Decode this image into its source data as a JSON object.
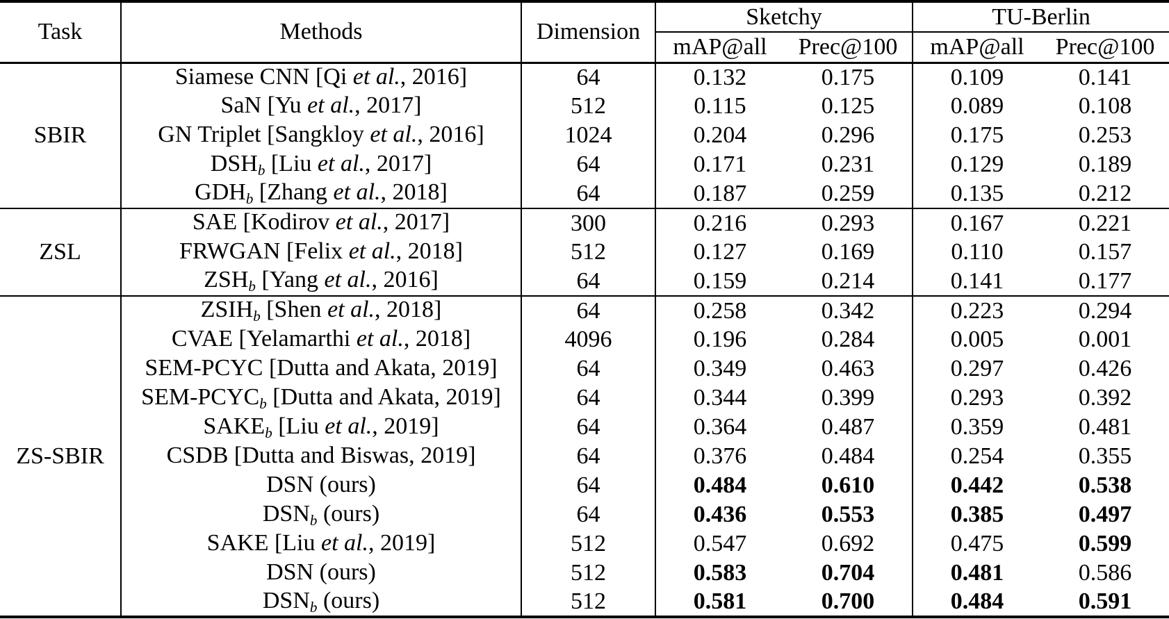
{
  "table": {
    "header": {
      "task": "Task",
      "methods": "Methods",
      "dimension": "Dimension",
      "sketchy": "Sketchy",
      "tu_berlin": "TU-Berlin",
      "sketchy_map": "mAP@all",
      "sketchy_prec": "Prec@100",
      "tu_map": "mAP@all",
      "tu_prec": "Prec@100"
    },
    "groups": [
      {
        "task": "SBIR",
        "rows": [
          {
            "method": {
              "name": "Siamese CNN",
              "sub": "",
              "cite1": " [Qi ",
              "etal": "et al.",
              "cite2": ", 2016]"
            },
            "dimension": "64",
            "values": [
              "0.132",
              "0.175",
              "0.109",
              "0.141"
            ],
            "bold": [
              false,
              false,
              false,
              false
            ]
          },
          {
            "method": {
              "name": "SaN",
              "sub": "",
              "cite1": " [Yu ",
              "etal": "et al.",
              "cite2": ", 2017]"
            },
            "dimension": "512",
            "values": [
              "0.115",
              "0.125",
              "0.089",
              "0.108"
            ],
            "bold": [
              false,
              false,
              false,
              false
            ]
          },
          {
            "method": {
              "name": "GN Triplet",
              "sub": "",
              "cite1": " [Sangkloy ",
              "etal": "et al.",
              "cite2": ", 2016]"
            },
            "dimension": "1024",
            "values": [
              "0.204",
              "0.296",
              "0.175",
              "0.253"
            ],
            "bold": [
              false,
              false,
              false,
              false
            ]
          },
          {
            "method": {
              "name": "DSH",
              "sub": "b",
              "cite1": " [Liu ",
              "etal": "et al.",
              "cite2": ", 2017]"
            },
            "dimension": "64",
            "values": [
              "0.171",
              "0.231",
              "0.129",
              "0.189"
            ],
            "bold": [
              false,
              false,
              false,
              false
            ]
          },
          {
            "method": {
              "name": "GDH",
              "sub": "b",
              "cite1": " [Zhang ",
              "etal": "et al.",
              "cite2": ", 2018]"
            },
            "dimension": "64",
            "values": [
              "0.187",
              "0.259",
              "0.135",
              "0.212"
            ],
            "bold": [
              false,
              false,
              false,
              false
            ]
          }
        ]
      },
      {
        "task": "ZSL",
        "rows": [
          {
            "method": {
              "name": "SAE",
              "sub": "",
              "cite1": " [Kodirov ",
              "etal": "et al.",
              "cite2": ", 2017]"
            },
            "dimension": "300",
            "values": [
              "0.216",
              "0.293",
              "0.167",
              "0.221"
            ],
            "bold": [
              false,
              false,
              false,
              false
            ]
          },
          {
            "method": {
              "name": "FRWGAN",
              "sub": "",
              "cite1": " [Felix ",
              "etal": "et al.",
              "cite2": ", 2018]"
            },
            "dimension": "512",
            "values": [
              "0.127",
              "0.169",
              "0.110",
              "0.157"
            ],
            "bold": [
              false,
              false,
              false,
              false
            ]
          },
          {
            "method": {
              "name": "ZSH",
              "sub": "b",
              "cite1": " [Yang ",
              "etal": "et al.",
              "cite2": ", 2016]"
            },
            "dimension": "64",
            "values": [
              "0.159",
              "0.214",
              "0.141",
              "0.177"
            ],
            "bold": [
              false,
              false,
              false,
              false
            ]
          }
        ]
      },
      {
        "task": "ZS-SBIR",
        "rows": [
          {
            "method": {
              "name": "ZSIH",
              "sub": "b",
              "cite1": " [Shen ",
              "etal": "et al.",
              "cite2": ", 2018]"
            },
            "dimension": "64",
            "values": [
              "0.258",
              "0.342",
              "0.223",
              "0.294"
            ],
            "bold": [
              false,
              false,
              false,
              false
            ]
          },
          {
            "method": {
              "name": "CVAE",
              "sub": "",
              "cite1": " [Yelamarthi ",
              "etal": "et al.",
              "cite2": ", 2018]"
            },
            "dimension": "4096",
            "values": [
              "0.196",
              "0.284",
              "0.005",
              "0.001"
            ],
            "bold": [
              false,
              false,
              false,
              false
            ]
          },
          {
            "method": {
              "name": "SEM-PCYC",
              "sub": "",
              "cite1": " [Dutta and Akata, 2019]",
              "etal": "",
              "cite2": ""
            },
            "dimension": "64",
            "values": [
              "0.349",
              "0.463",
              "0.297",
              "0.426"
            ],
            "bold": [
              false,
              false,
              false,
              false
            ]
          },
          {
            "method": {
              "name": "SEM-PCYC",
              "sub": "b",
              "cite1": " [Dutta and Akata, 2019]",
              "etal": "",
              "cite2": ""
            },
            "dimension": "64",
            "values": [
              "0.344",
              "0.399",
              "0.293",
              "0.392"
            ],
            "bold": [
              false,
              false,
              false,
              false
            ]
          },
          {
            "method": {
              "name": "SAKE",
              "sub": "b",
              "cite1": " [Liu ",
              "etal": "et al.",
              "cite2": ", 2019]"
            },
            "dimension": "64",
            "values": [
              "0.364",
              "0.487",
              "0.359",
              "0.481"
            ],
            "bold": [
              false,
              false,
              false,
              false
            ]
          },
          {
            "method": {
              "name": "CSDB",
              "sub": "",
              "cite1": " [Dutta and Biswas, 2019]",
              "etal": "",
              "cite2": ""
            },
            "dimension": "64",
            "values": [
              "0.376",
              "0.484",
              "0.254",
              "0.355"
            ],
            "bold": [
              false,
              false,
              false,
              false
            ]
          },
          {
            "method": {
              "name": "DSN",
              "sub": "",
              "cite1": " (ours)",
              "etal": "",
              "cite2": ""
            },
            "dimension": "64",
            "values": [
              "0.484",
              "0.610",
              "0.442",
              "0.538"
            ],
            "bold": [
              true,
              true,
              true,
              true
            ]
          },
          {
            "method": {
              "name": "DSN",
              "sub": "b",
              "cite1": " (ours)",
              "etal": "",
              "cite2": ""
            },
            "dimension": "64",
            "values": [
              "0.436",
              "0.553",
              "0.385",
              "0.497"
            ],
            "bold": [
              true,
              true,
              true,
              true
            ]
          },
          {
            "method": {
              "name": "SAKE",
              "sub": "",
              "cite1": " [Liu ",
              "etal": "et al.",
              "cite2": ", 2019]"
            },
            "dimension": "512",
            "values": [
              "0.547",
              "0.692",
              "0.475",
              "0.599"
            ],
            "bold": [
              false,
              false,
              false,
              true
            ]
          },
          {
            "method": {
              "name": "DSN",
              "sub": "",
              "cite1": " (ours)",
              "etal": "",
              "cite2": ""
            },
            "dimension": "512",
            "values": [
              "0.583",
              "0.704",
              "0.481",
              "0.586"
            ],
            "bold": [
              true,
              true,
              true,
              false
            ]
          },
          {
            "method": {
              "name": "DSN",
              "sub": "b",
              "cite1": " (ours)",
              "etal": "",
              "cite2": ""
            },
            "dimension": "512",
            "values": [
              "0.581",
              "0.700",
              "0.484",
              "0.591"
            ],
            "bold": [
              true,
              true,
              true,
              true
            ]
          }
        ]
      }
    ]
  }
}
